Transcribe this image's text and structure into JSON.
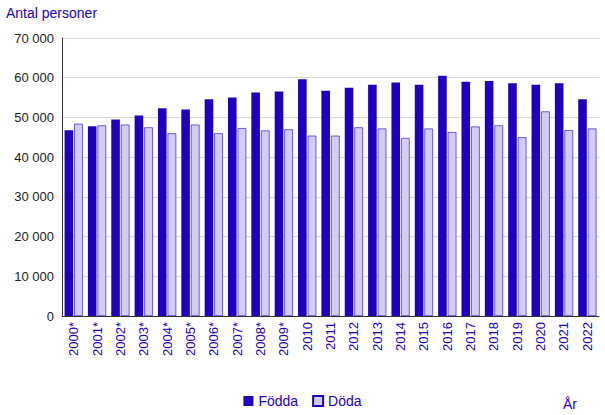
{
  "chart_data": {
    "type": "bar",
    "y_label": "Antal personer",
    "x_label": "År",
    "categories": [
      "2000*",
      "2001*",
      "2002*",
      "2003*",
      "2004*",
      "2005*",
      "2006*",
      "2007*",
      "2008*",
      "2009*",
      "2010",
      "2011",
      "2012",
      "2013",
      "2014",
      "2015",
      "2016",
      "2017",
      "2018",
      "2019",
      "2020",
      "2021",
      "2022"
    ],
    "series": [
      {
        "name": "Födda",
        "color": "#1e00be",
        "values": [
          46800,
          47800,
          49500,
          50500,
          52300,
          52000,
          54600,
          55000,
          56300,
          56500,
          59600,
          56700,
          57500,
          58200,
          58800,
          58200,
          60500,
          59000,
          59200,
          58600,
          58200,
          58600,
          54600
        ]
      },
      {
        "name": "Döda",
        "color": "#d2cdf5",
        "values": [
          48400,
          48000,
          48200,
          47500,
          46000,
          48200,
          46000,
          47300,
          46700,
          47000,
          45400,
          45400,
          47500,
          47200,
          44800,
          47200,
          46300,
          47700,
          48000,
          45000,
          51500,
          46800,
          47200
        ]
      }
    ],
    "ylim": [
      0,
      70000
    ],
    "yticks": [
      0,
      {
        "value": 10000,
        "label": "10 000"
      },
      {
        "value": 20000,
        "label": "20 000"
      },
      {
        "value": 30000,
        "label": "30 000"
      },
      {
        "value": 40000,
        "label": "40 000"
      },
      {
        "value": 50000,
        "label": "50 000"
      },
      {
        "value": 60000,
        "label": "60 000"
      },
      {
        "value": 70000,
        "label": "70 000"
      }
    ],
    "grid": true,
    "legend": "bottom"
  }
}
